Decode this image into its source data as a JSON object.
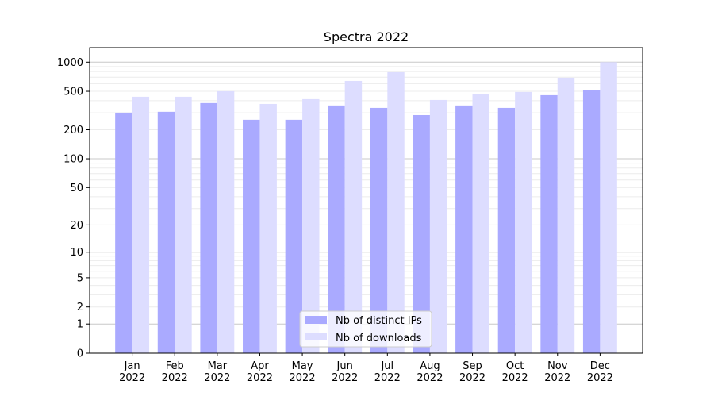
{
  "chart_data": {
    "type": "bar",
    "title": "Spectra 2022",
    "xlabel": "",
    "ylabel": "",
    "yscale": "log10(y+1)",
    "ylim": [
      0,
      1300
    ],
    "grid": true,
    "legend_position": "bottom-center",
    "categories": [
      "Jan\n2022",
      "Feb\n2022",
      "Mar\n2022",
      "Apr\n2022",
      "May\n2022",
      "Jun\n2022",
      "Jul\n2022",
      "Aug\n2022",
      "Sep\n2022",
      "Oct\n2022",
      "Nov\n2022",
      "Dec\n2022"
    ],
    "yticks": [
      0,
      1,
      2,
      5,
      10,
      20,
      50,
      100,
      200,
      500,
      1000
    ],
    "series": [
      {
        "name": "Nb of distinct IPs",
        "color": "#aaaaff",
        "values": [
          301,
          307,
          378,
          254,
          254,
          357,
          337,
          284,
          357,
          337,
          456,
          510
        ]
      },
      {
        "name": "Nb of downloads",
        "color": "#ddddff",
        "values": [
          439,
          439,
          501,
          370,
          415,
          640,
          788,
          407,
          465,
          492,
          691,
          1000
        ]
      }
    ]
  }
}
